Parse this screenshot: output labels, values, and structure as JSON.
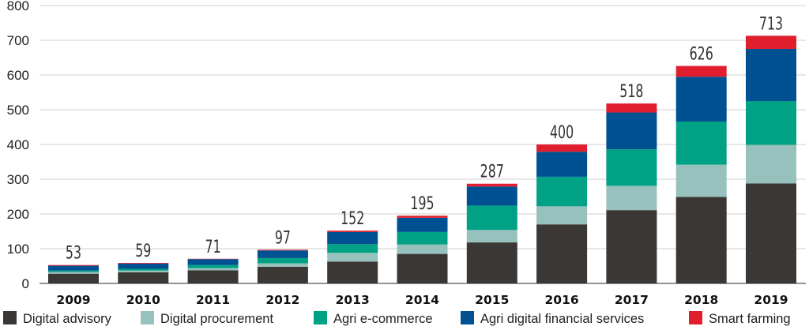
{
  "chart_data": {
    "type": "bar",
    "stacked": true,
    "title": "",
    "xlabel": "",
    "ylabel": "",
    "ylim": [
      0,
      800
    ],
    "yticks": [
      0,
      100,
      200,
      300,
      400,
      500,
      600,
      700,
      800
    ],
    "grid": true,
    "legend_position": "bottom",
    "categories": [
      "2009",
      "2010",
      "2011",
      "2012",
      "2013",
      "2014",
      "2015",
      "2016",
      "2017",
      "2018",
      "2019"
    ],
    "totals": [
      53,
      59,
      71,
      97,
      152,
      195,
      287,
      400,
      518,
      626,
      713
    ],
    "series": [
      {
        "name": "Digital advisory",
        "color": "#3b3734",
        "values": [
          28,
          32,
          38,
          48,
          63,
          85,
          118,
          170,
          211,
          249,
          288
        ]
      },
      {
        "name": "Digital procurement",
        "color": "#96c1bc",
        "values": [
          5,
          5,
          6,
          10,
          25,
          27,
          36,
          52,
          70,
          93,
          111
        ]
      },
      {
        "name": "Agri e-commerce",
        "color": "#00a184",
        "values": [
          4,
          5,
          9,
          15,
          25,
          36,
          70,
          85,
          105,
          124,
          126
        ]
      },
      {
        "name": "Agri digital financial services",
        "color": "#005191",
        "values": [
          14,
          15,
          17,
          22,
          35,
          41,
          55,
          72,
          106,
          129,
          150
        ]
      },
      {
        "name": "Smart farming",
        "color": "#e01e2d",
        "values": [
          2,
          2,
          1,
          2,
          4,
          6,
          8,
          21,
          26,
          31,
          38
        ]
      }
    ]
  }
}
